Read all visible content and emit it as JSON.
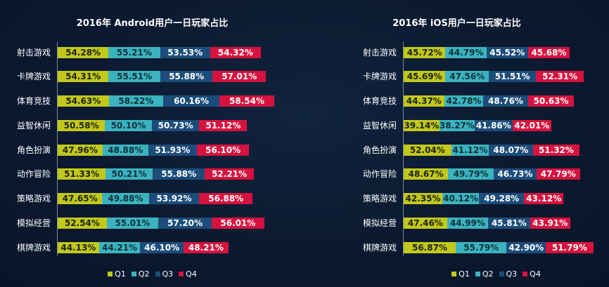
{
  "chart_data": [
    {
      "type": "bar",
      "orientation": "horizontal",
      "stacked": true,
      "title": "2016年 Android用户一日玩家占比",
      "categories": [
        "射击游戏",
        "卡牌游戏",
        "体育竞技",
        "益智休闲",
        "角色扮演",
        "动作冒险",
        "策略游戏",
        "模拟经营",
        "棋牌游戏"
      ],
      "series": [
        {
          "name": "Q1",
          "color": "#c2c81c",
          "values": [
            54.28,
            54.31,
            54.63,
            50.58,
            47.96,
            51.33,
            47.65,
            52.54,
            44.13
          ]
        },
        {
          "name": "Q2",
          "color": "#3bb3bf",
          "values": [
            55.21,
            55.51,
            58.22,
            50.1,
            48.88,
            50.21,
            49.88,
            55.01,
            44.21
          ]
        },
        {
          "name": "Q3",
          "color": "#1c4d7a",
          "values": [
            53.53,
            55.88,
            60.16,
            50.73,
            51.93,
            55.88,
            53.92,
            57.2,
            46.1
          ]
        },
        {
          "name": "Q4",
          "color": "#d6123f",
          "values": [
            54.32,
            57.01,
            58.54,
            51.12,
            56.1,
            52.21,
            56.88,
            56.01,
            48.21
          ]
        }
      ],
      "legend_position": "bottom",
      "grid": false,
      "unit": "%"
    },
    {
      "type": "bar",
      "orientation": "horizontal",
      "stacked": true,
      "title": "2016年 iOS用户一日玩家占比",
      "categories": [
        "射击游戏",
        "卡牌游戏",
        "体育竞技",
        "益智休闲",
        "角色扮演",
        "动作冒险",
        "策略游戏",
        "模拟经营",
        "棋牌游戏"
      ],
      "series": [
        {
          "name": "Q1",
          "color": "#c2c81c",
          "values": [
            45.72,
            45.69,
            44.37,
            39.14,
            52.04,
            48.67,
            42.35,
            47.46,
            56.87
          ]
        },
        {
          "name": "Q2",
          "color": "#3bb3bf",
          "values": [
            44.79,
            47.56,
            42.78,
            38.27,
            41.12,
            49.79,
            40.12,
            44.99,
            55.79
          ]
        },
        {
          "name": "Q3",
          "color": "#1c4d7a",
          "values": [
            45.52,
            51.51,
            48.76,
            41.86,
            48.07,
            46.73,
            49.28,
            45.81,
            42.9
          ]
        },
        {
          "name": "Q4",
          "color": "#d6123f",
          "values": [
            45.68,
            52.31,
            50.63,
            42.01,
            51.32,
            47.79,
            43.12,
            43.91,
            51.79
          ]
        }
      ],
      "legend_position": "bottom",
      "grid": false,
      "unit": "%"
    }
  ],
  "legend": [
    "Q1",
    "Q2",
    "Q3",
    "Q4"
  ]
}
